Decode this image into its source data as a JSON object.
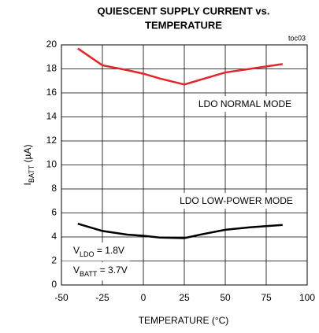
{
  "chart_data": {
    "type": "line",
    "title": [
      "QUIESCENT SUPPLY CURRENT vs.",
      "TEMPERATURE"
    ],
    "tag": "toc03",
    "x_label": "TEMPERATURE (°C)",
    "y_label": [
      "I",
      "BATT",
      " (µA)"
    ],
    "x": [
      -40,
      -25,
      -10,
      0,
      10,
      25,
      35,
      50,
      65,
      85
    ],
    "series": [
      {
        "name": "LDO NORMAL MODE",
        "color": "#e3262b",
        "values": [
          19.7,
          18.3,
          17.9,
          17.6,
          17.2,
          16.7,
          17.1,
          17.7,
          18.0,
          18.4
        ]
      },
      {
        "name": "LDO LOW-POWER MODE",
        "color": "#000000",
        "values": [
          5.1,
          4.5,
          4.2,
          4.1,
          3.95,
          3.9,
          4.2,
          4.6,
          4.8,
          5.0
        ]
      }
    ],
    "annotations": [
      [
        "V",
        "LDO",
        " = 1.8V"
      ],
      [
        "V",
        "BATT",
        " = 3.7V"
      ]
    ],
    "xlim": [
      -50,
      100
    ],
    "xticks": [
      -50,
      -25,
      0,
      25,
      50,
      75,
      100
    ],
    "ylim": [
      0,
      20
    ],
    "yticks": [
      0,
      2,
      4,
      6,
      8,
      10,
      12,
      14,
      16,
      18,
      20
    ],
    "grid": true
  }
}
